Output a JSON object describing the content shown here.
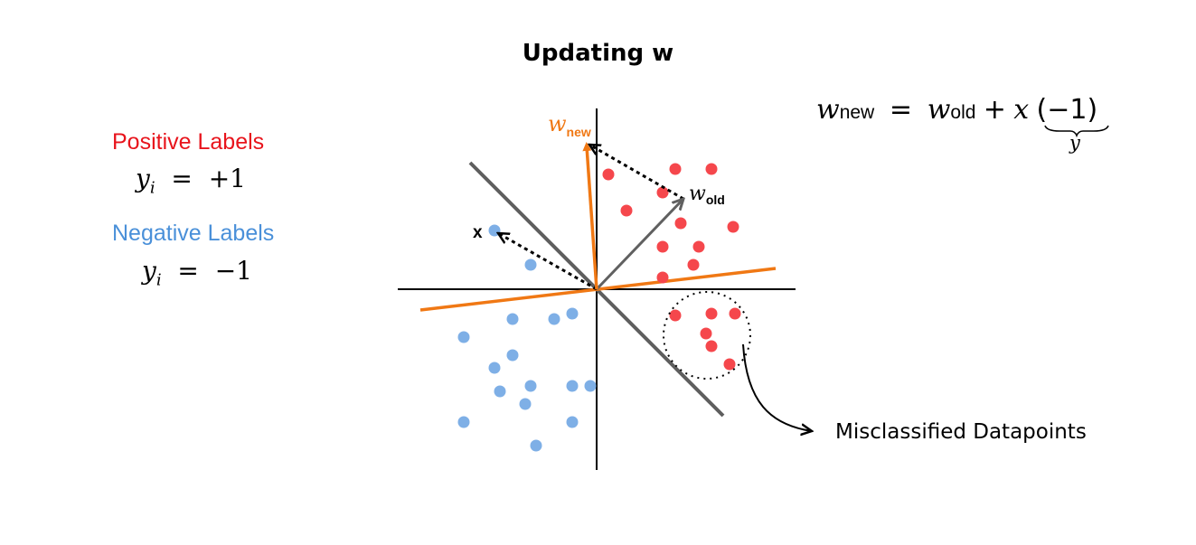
{
  "title": "Updating w",
  "legend": {
    "positive": {
      "label": "Positive Labels",
      "var": "y",
      "sub": "i",
      "eq": "=",
      "value": "+1",
      "color": "#e8141c"
    },
    "negative": {
      "label": "Negative Labels",
      "var": "y",
      "sub": "i",
      "eq": "=",
      "value": "−1",
      "color": "#4a90d9"
    }
  },
  "vectors": {
    "w_new": {
      "symbol": "w",
      "sub": "new",
      "color": "#f07814"
    },
    "w_old": {
      "symbol": "w",
      "sub": "old",
      "color": "#606060"
    },
    "x": {
      "label": "x"
    }
  },
  "formula": {
    "lhs_symbol": "w",
    "lhs_sub": "new",
    "eq": "=",
    "rhs_symbol": "w",
    "rhs_sub": "old",
    "plus": "+",
    "x": "x",
    "factor": "(−1)",
    "brace_label": "y"
  },
  "caption": "Misclassified Datapoints",
  "colors": {
    "positive_point": "#f5474c",
    "negative_point": "#7eafe6",
    "boundary_old": "#5e5e5e",
    "boundary_new": "#f07814"
  }
}
